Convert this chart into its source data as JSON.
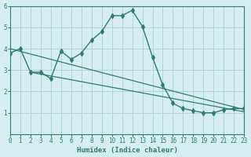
{
  "xlabel": "Humidex (Indice chaleur)",
  "bg_color": "#d6eef2",
  "grid_color": "#b0d4dc",
  "line_color": "#2e7d6e",
  "xlim": [
    0,
    23
  ],
  "ylim": [
    0,
    6
  ],
  "xticks": [
    0,
    1,
    2,
    3,
    4,
    5,
    6,
    7,
    8,
    9,
    10,
    11,
    12,
    13,
    14,
    15,
    16,
    17,
    18,
    19,
    20,
    21,
    22,
    23
  ],
  "yticks": [
    1,
    2,
    3,
    4,
    5,
    6
  ],
  "curve_x": [
    0,
    1,
    2,
    3,
    4,
    5,
    6,
    7,
    8,
    9,
    10,
    11,
    12,
    13,
    14,
    15,
    16,
    17,
    18,
    19,
    20,
    21,
    22,
    23
  ],
  "curve_y": [
    3.8,
    4.0,
    2.9,
    2.9,
    2.6,
    3.9,
    3.5,
    3.8,
    4.4,
    4.8,
    5.55,
    5.55,
    5.8,
    5.05,
    3.6,
    2.3,
    1.45,
    1.2,
    1.1,
    1.0,
    1.0,
    1.15,
    1.2,
    1.2
  ],
  "line1_x": [
    0,
    23
  ],
  "line1_y": [
    4.0,
    1.15
  ],
  "line2_x": [
    2,
    23
  ],
  "line2_y": [
    2.9,
    1.05
  ]
}
